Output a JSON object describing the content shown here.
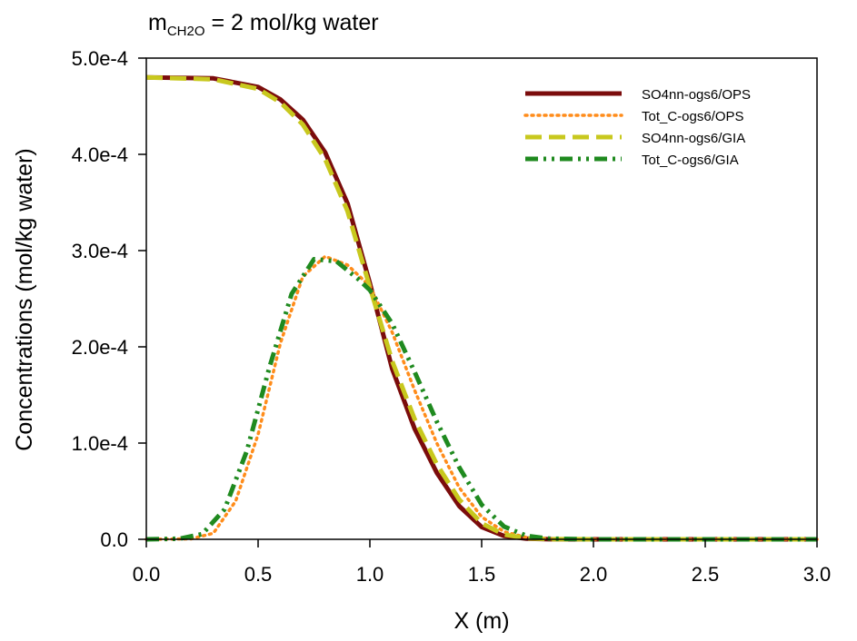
{
  "chart_data": {
    "type": "line",
    "title": {
      "main": "m",
      "subscript": "CH2O",
      "rest": " = 2 mol/kg water"
    },
    "xlabel": "X (m)",
    "ylabel": "Concentrations (mol/kg water)",
    "xlim": [
      0,
      3
    ],
    "ylim": [
      0,
      0.0005
    ],
    "x_ticks": [
      0,
      0.5,
      1,
      1.5,
      2,
      2.5,
      3
    ],
    "x_tick_labels": [
      "0.0",
      "0.5",
      "1.0",
      "1.5",
      "2.0",
      "2.5",
      "3.0"
    ],
    "y_ticks": [
      0,
      0.0001,
      0.0002,
      0.0003,
      0.0004,
      0.0005
    ],
    "y_tick_labels": [
      "0.0",
      "1.0e-4",
      "2.0e-4",
      "3.0e-4",
      "4.0e-4",
      "5.0e-4"
    ],
    "grid": false,
    "legend_position": "top-right",
    "series": [
      {
        "name": "SO4nn-ogs6/OPS",
        "color": "#7b0c0c",
        "style": "solid",
        "x": [
          0,
          0.3,
          0.5,
          0.6,
          0.7,
          0.8,
          0.9,
          1.0,
          1.1,
          1.2,
          1.3,
          1.4,
          1.5,
          1.6,
          1.7,
          1.8,
          2.0,
          2.5,
          3.0
        ],
        "y": [
          0.00048,
          0.000479,
          0.00047,
          0.000457,
          0.000436,
          0.000402,
          0.000349,
          0.000266,
          0.000177,
          0.000115,
          6.89e-05,
          3.44e-05,
          1.28e-05,
          3.5e-06,
          7e-07,
          1e-07,
          0,
          0,
          0
        ]
      },
      {
        "name": "Tot_C-ogs6/OPS",
        "color": "#ff8c1a",
        "style": "dotted",
        "x": [
          0,
          0.2,
          0.3,
          0.4,
          0.5,
          0.6,
          0.7,
          0.8,
          0.9,
          1.0,
          1.1,
          1.2,
          1.3,
          1.4,
          1.5,
          1.6,
          1.7,
          1.8,
          2.0,
          2.5,
          3.0
        ],
        "y": [
          0,
          5e-07,
          6.3e-06,
          3.98e-05,
          0.000109,
          0.000204,
          0.000273,
          0.000294,
          0.000285,
          0.000263,
          0.000215,
          0.000155,
          9.96e-05,
          5.36e-05,
          2.33e-05,
          7.9e-06,
          2e-06,
          4e-07,
          0,
          0,
          0
        ]
      },
      {
        "name": "SO4nn-ogs6/GIA",
        "color": "#c8c81e",
        "style": "dashed",
        "x": [
          0,
          0.3,
          0.5,
          0.6,
          0.7,
          0.8,
          0.9,
          1.0,
          1.1,
          1.2,
          1.3,
          1.4,
          1.5,
          1.6,
          1.7,
          1.8,
          2.0,
          2.5,
          3.0
        ],
        "y": [
          0.00048,
          0.000478,
          0.000468,
          0.000454,
          0.000431,
          0.000395,
          0.000341,
          0.000262,
          0.000185,
          0.000125,
          7.76e-05,
          4.12e-05,
          1.66e-05,
          4.9e-06,
          1.1e-06,
          2e-07,
          0,
          0,
          0
        ]
      },
      {
        "name": "Tot_C-ogs6/GIA",
        "color": "#1f8a1f",
        "style": "dashdotdot",
        "x": [
          0,
          0.15,
          0.25,
          0.35,
          0.45,
          0.55,
          0.65,
          0.75,
          0.85,
          0.95,
          1.0,
          1.1,
          1.2,
          1.3,
          1.4,
          1.5,
          1.6,
          1.7,
          1.8,
          2.0,
          2.5,
          3.0
        ],
        "y": [
          0,
          7e-07,
          5.5e-06,
          3.11e-05,
          9.21e-05,
          0.000178,
          0.000255,
          0.000291,
          0.000289,
          0.00027,
          0.000259,
          0.000224,
          0.000174,
          0.000122,
          7.46e-05,
          3.59e-05,
          1.33e-05,
          3.7e-06,
          8e-07,
          0,
          0,
          0
        ]
      }
    ]
  }
}
